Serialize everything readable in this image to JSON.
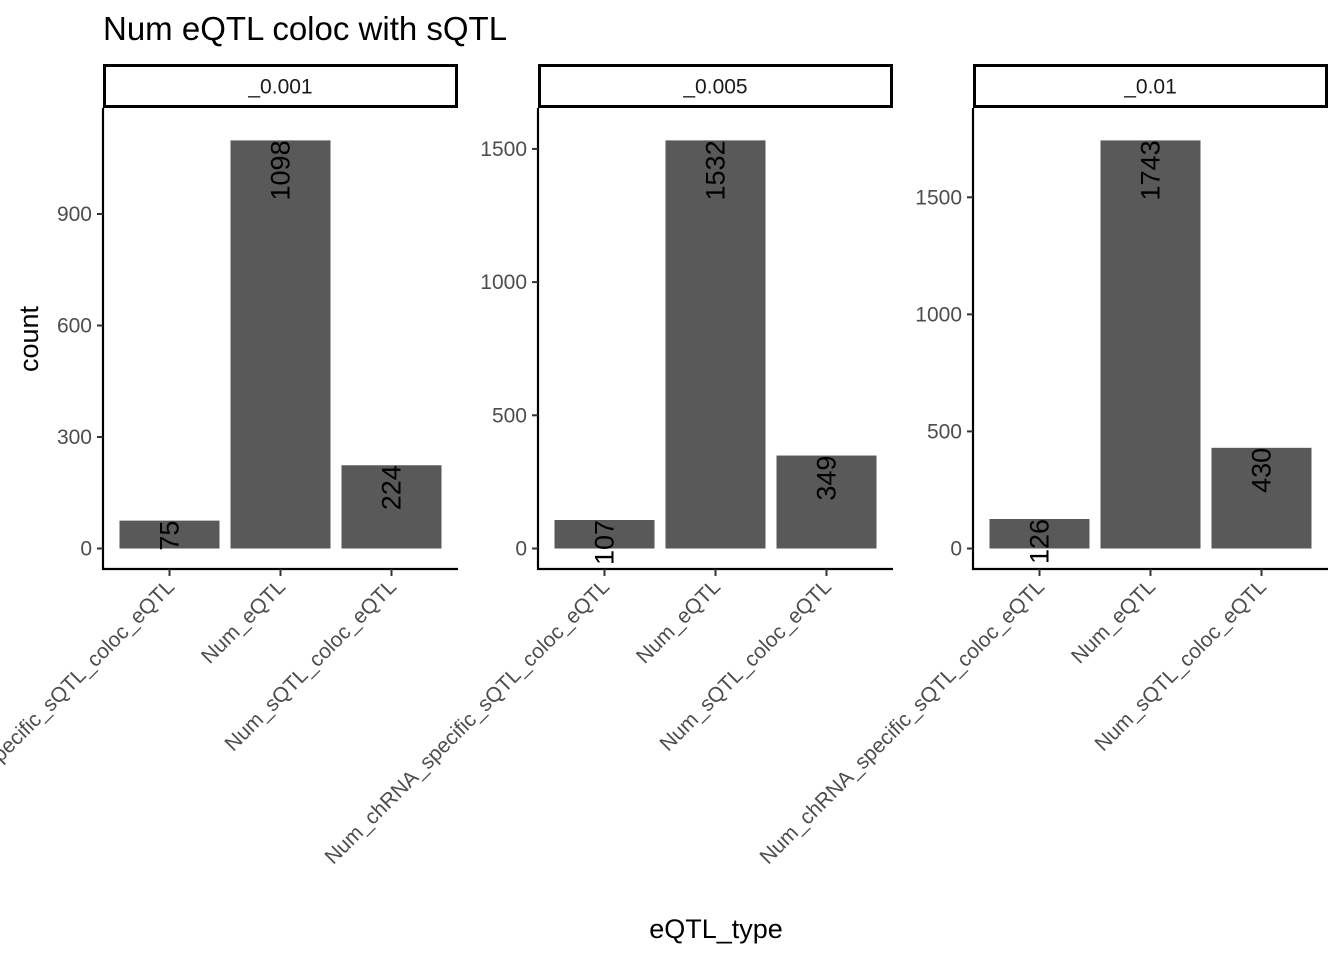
{
  "chart_data": {
    "type": "bar",
    "title": "Num eQTL coloc with sQTL",
    "xlabel": "eQTL_type",
    "ylabel": "count",
    "categories": [
      "Num_chRNA_specific_sQTL_coloc_eQTL",
      "Num_eQTL",
      "Num_sQTL_coloc_eQTL"
    ],
    "facet_label": "",
    "facets": [
      {
        "label": "_0.001",
        "values": [
          75,
          1098,
          224
        ],
        "yticks": [
          0,
          300,
          600,
          900
        ],
        "ylim": [
          0,
          1152.9
        ]
      },
      {
        "label": "_0.005",
        "values": [
          107,
          1532,
          349
        ],
        "yticks": [
          0,
          500,
          1000,
          1500
        ],
        "ylim": [
          0,
          1608.6
        ]
      },
      {
        "label": "_0.01",
        "values": [
          126,
          1743,
          430
        ],
        "yticks": [
          0,
          500,
          1000,
          1500
        ],
        "ylim": [
          0,
          1830.15
        ]
      }
    ],
    "bar_color": "#595959",
    "grid": false,
    "legend": "none"
  }
}
